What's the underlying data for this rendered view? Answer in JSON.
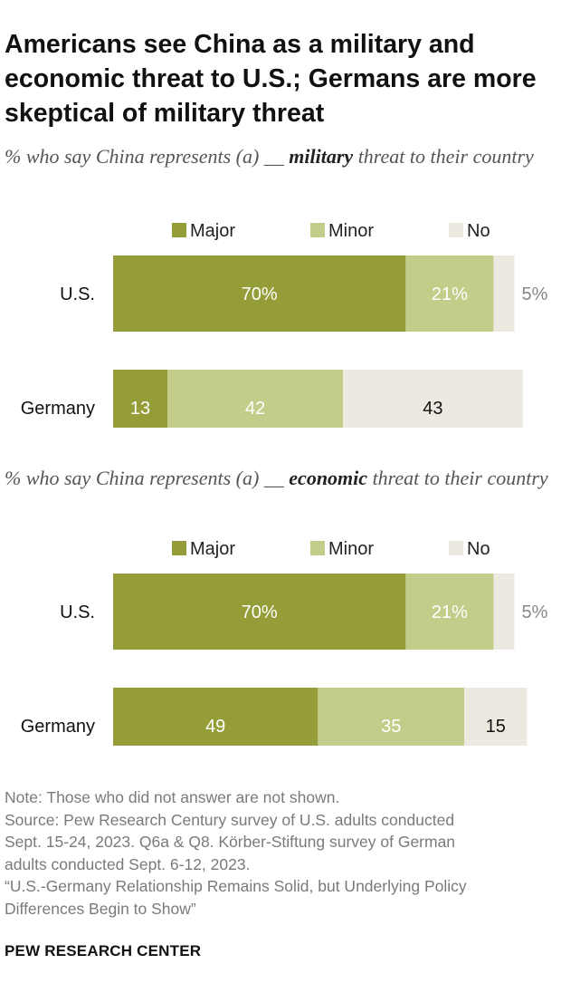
{
  "title": "Americans see China as a military and economic threat to U.S.; Germans are more skeptical of military threat",
  "colors": {
    "major": "#949d38",
    "minor": "#c3cd89",
    "no": "#ece9e0",
    "dark_text": "#111111",
    "light_label": "#ffffff",
    "muted_label": "#888888"
  },
  "chart_data": [
    {
      "type": "bar",
      "orientation": "horizontal",
      "stacked": true,
      "subtitle_pre": "% who say China represents (a) __ ",
      "subtitle_emph": "military",
      "subtitle_post": " threat to their country",
      "legend": [
        "Major",
        "Minor",
        "No"
      ],
      "legend_placement": "top",
      "categories": [
        "U.S.",
        "Germany"
      ],
      "series": [
        {
          "name": "Major",
          "values": [
            70,
            13
          ]
        },
        {
          "name": "Minor",
          "values": [
            21,
            42
          ]
        },
        {
          "name": "No",
          "values": [
            5,
            43
          ]
        }
      ],
      "value_labels": [
        [
          "70%",
          "21%",
          "5%"
        ],
        [
          "13",
          "42",
          "43"
        ]
      ],
      "xlim": [
        0,
        100
      ]
    },
    {
      "type": "bar",
      "orientation": "horizontal",
      "stacked": true,
      "subtitle_pre": "% who say China represents (a) __ ",
      "subtitle_emph": "economic",
      "subtitle_post": " threat to their country",
      "legend": [
        "Major",
        "Minor",
        "No"
      ],
      "legend_placement": "top",
      "categories": [
        "U.S.",
        "Germany"
      ],
      "series": [
        {
          "name": "Major",
          "values": [
            70,
            49
          ]
        },
        {
          "name": "Minor",
          "values": [
            21,
            35
          ]
        },
        {
          "name": "No",
          "values": [
            5,
            15
          ]
        }
      ],
      "value_labels": [
        [
          "70%",
          "21%",
          "5%"
        ],
        [
          "49",
          "35",
          "15"
        ]
      ],
      "xlim": [
        0,
        100
      ]
    }
  ],
  "footnote": {
    "note": "Note: Those who did not answer are not shown.",
    "source": "Source: Pew Research Century survey of U.S. adults conducted\nSept. 15-24, 2023. Q6a & Q8. Körber-Stiftung survey of German\nadults conducted Sept. 6-12, 2023.",
    "report": "“U.S.-Germany Relationship Remains Solid, but Underlying Policy\nDifferences Begin to Show”"
  },
  "org": "PEW RESEARCH CENTER"
}
